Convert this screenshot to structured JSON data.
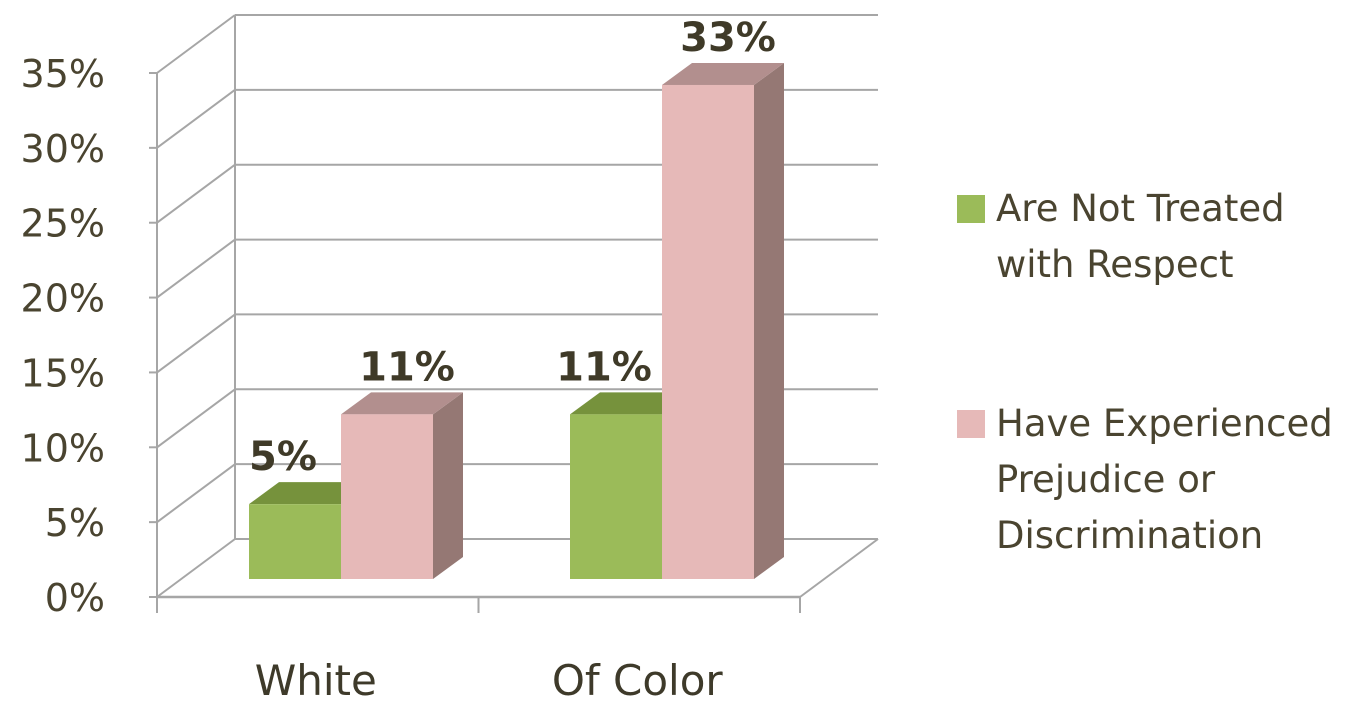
{
  "chart_data": {
    "type": "bar",
    "categories": [
      "White",
      "Of Color"
    ],
    "series": [
      {
        "name": "Are Not Treated with Respect",
        "values": [
          5,
          11
        ],
        "labels": [
          "5%",
          "11%"
        ],
        "color": "#9bbb59",
        "color_top": "#76923c"
      },
      {
        "name": "Have Experienced Prejudice or Discrimination",
        "values": [
          11,
          33
        ],
        "labels": [
          "11%",
          "33%"
        ],
        "color": "#e6b9b8",
        "color_top": "#b28f8e",
        "color_side": "#957874"
      }
    ],
    "ylim": [
      0,
      35
    ],
    "yticks": [
      "0%",
      "5%",
      "10%",
      "15%",
      "20%",
      "25%",
      "30%",
      "35%"
    ],
    "legend_lines": [
      [
        "Are Not Treated",
        "with Respect"
      ],
      [
        "Have Experienced",
        "Prejudice or",
        "Discrimination"
      ]
    ],
    "legend_position": "right",
    "grid": true,
    "style": "3d-clustered-column"
  }
}
